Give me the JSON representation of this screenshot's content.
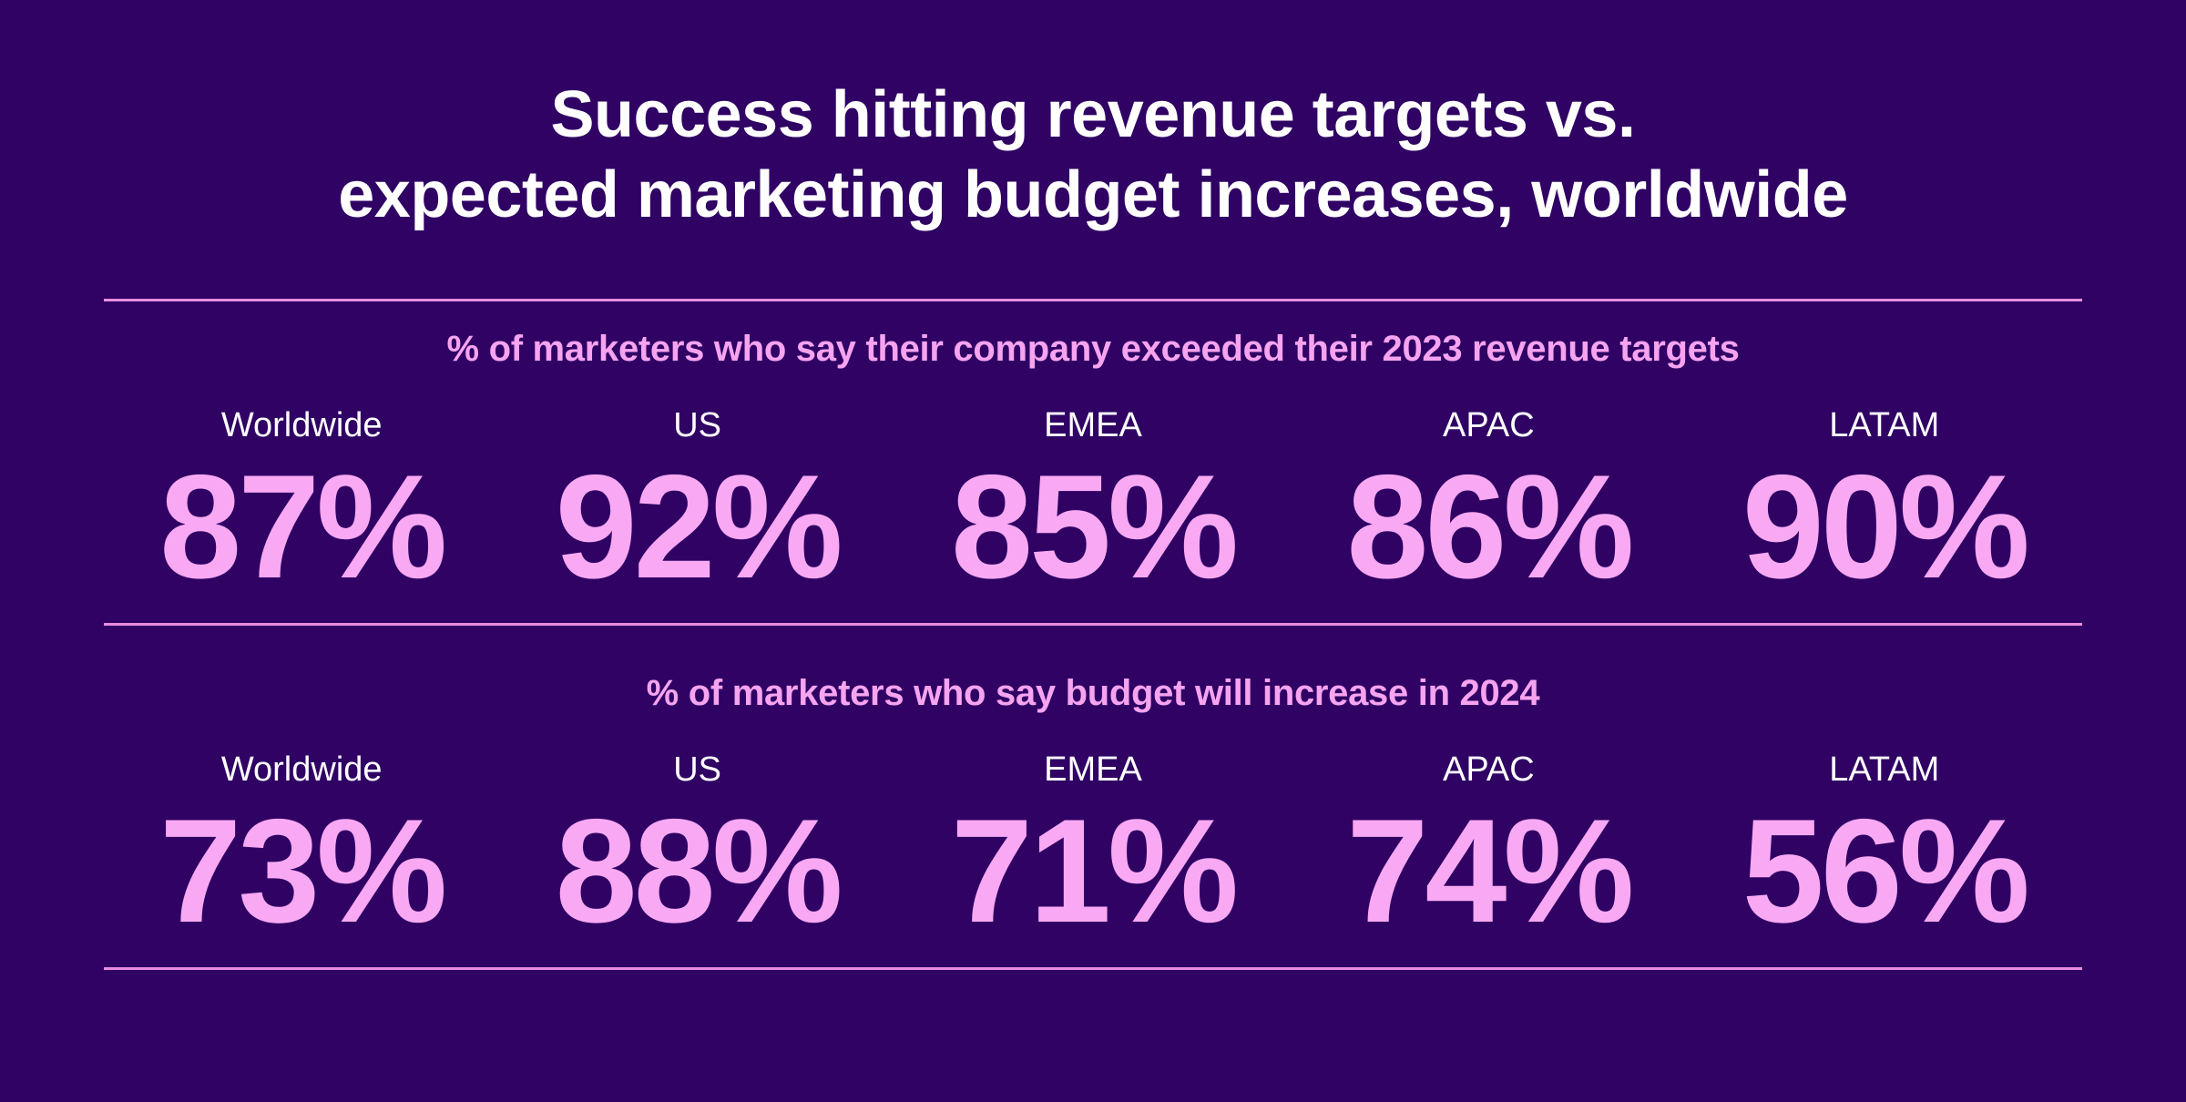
{
  "palette": {
    "background": "#2f0264",
    "accent_pink": "#f9a9f3",
    "header_pink": "#f6a3f0",
    "divider_pink": "#ea8ce2",
    "label_white": "#ffffff"
  },
  "title": {
    "line1": "Success hitting revenue targets vs.",
    "line2": "expected marketing budget increases, worldwide"
  },
  "sections": [
    {
      "header": "% of marketers who say their company exceeded their 2023 revenue targets",
      "stats": [
        {
          "label": "Worldwide",
          "value": "87%"
        },
        {
          "label": "US",
          "value": "92%"
        },
        {
          "label": "EMEA",
          "value": "85%"
        },
        {
          "label": "APAC",
          "value": "86%"
        },
        {
          "label": "LATAM",
          "value": "90%"
        }
      ]
    },
    {
      "header": "% of marketers who say budget will increase in 2024",
      "stats": [
        {
          "label": "Worldwide",
          "value": "73%"
        },
        {
          "label": "US",
          "value": "88%"
        },
        {
          "label": "EMEA",
          "value": "71%"
        },
        {
          "label": "APAC",
          "value": "74%"
        },
        {
          "label": "LATAM",
          "value": "56%"
        }
      ]
    }
  ],
  "chart_data": {
    "type": "table",
    "title": "Success hitting revenue targets vs. expected marketing budget increases, worldwide",
    "categories": [
      "Worldwide",
      "US",
      "EMEA",
      "APAC",
      "LATAM"
    ],
    "series": [
      {
        "name": "% of marketers who say their company exceeded their 2023 revenue targets",
        "values": [
          87,
          92,
          85,
          86,
          90
        ],
        "unit": "%"
      },
      {
        "name": "% of marketers who say budget will increase in 2024",
        "values": [
          73,
          88,
          71,
          74,
          56
        ],
        "unit": "%"
      }
    ],
    "legend_position": "none",
    "grid": false,
    "layout": "two stacked rows of large stat numbers separated by thin pink horizontal rules"
  }
}
